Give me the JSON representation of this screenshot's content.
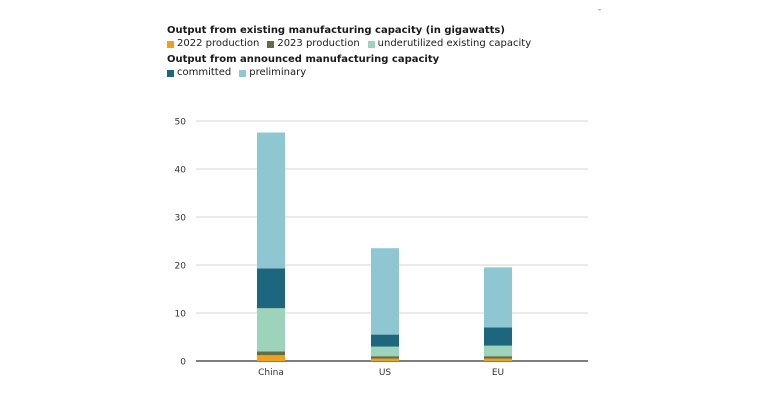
{
  "corner_mark": "-",
  "legend": {
    "group1_title": "Output from existing manufacturing capacity (in gigawatts)",
    "group1_items": [
      {
        "label": "2022 production",
        "color": "#f0a01c"
      },
      {
        "label": "2023 production",
        "color": "#5f6f45"
      },
      {
        "label": "underutilized existing capacity",
        "color": "#9dd2bb"
      }
    ],
    "group2_title": "Output from announced manufacturing capacity",
    "group2_items": [
      {
        "label": "committed",
        "color": "#1c667e"
      },
      {
        "label": "preliminary",
        "color": "#8ec6d2"
      }
    ]
  },
  "chart_data": {
    "type": "bar",
    "stacked": true,
    "categories": [
      "China",
      "US",
      "EU"
    ],
    "y_ticks": [
      0,
      10,
      20,
      30,
      40,
      50
    ],
    "ylim": [
      0,
      50
    ],
    "grid": true,
    "series": [
      {
        "name": "2022 production",
        "color": "#f0a01c",
        "values": [
          1.2,
          0.5,
          0.5
        ]
      },
      {
        "name": "2023 production",
        "color": "#5f6f45",
        "values": [
          0.8,
          0.5,
          0.5
        ]
      },
      {
        "name": "underutilized existing capacity",
        "color": "#9dd2bb",
        "values": [
          9.0,
          2.0,
          2.2
        ]
      },
      {
        "name": "committed",
        "color": "#1c667e",
        "values": [
          8.3,
          2.5,
          3.8
        ]
      },
      {
        "name": "preliminary",
        "color": "#8ec6d2",
        "values": [
          28.3,
          18.0,
          12.5
        ]
      }
    ]
  }
}
